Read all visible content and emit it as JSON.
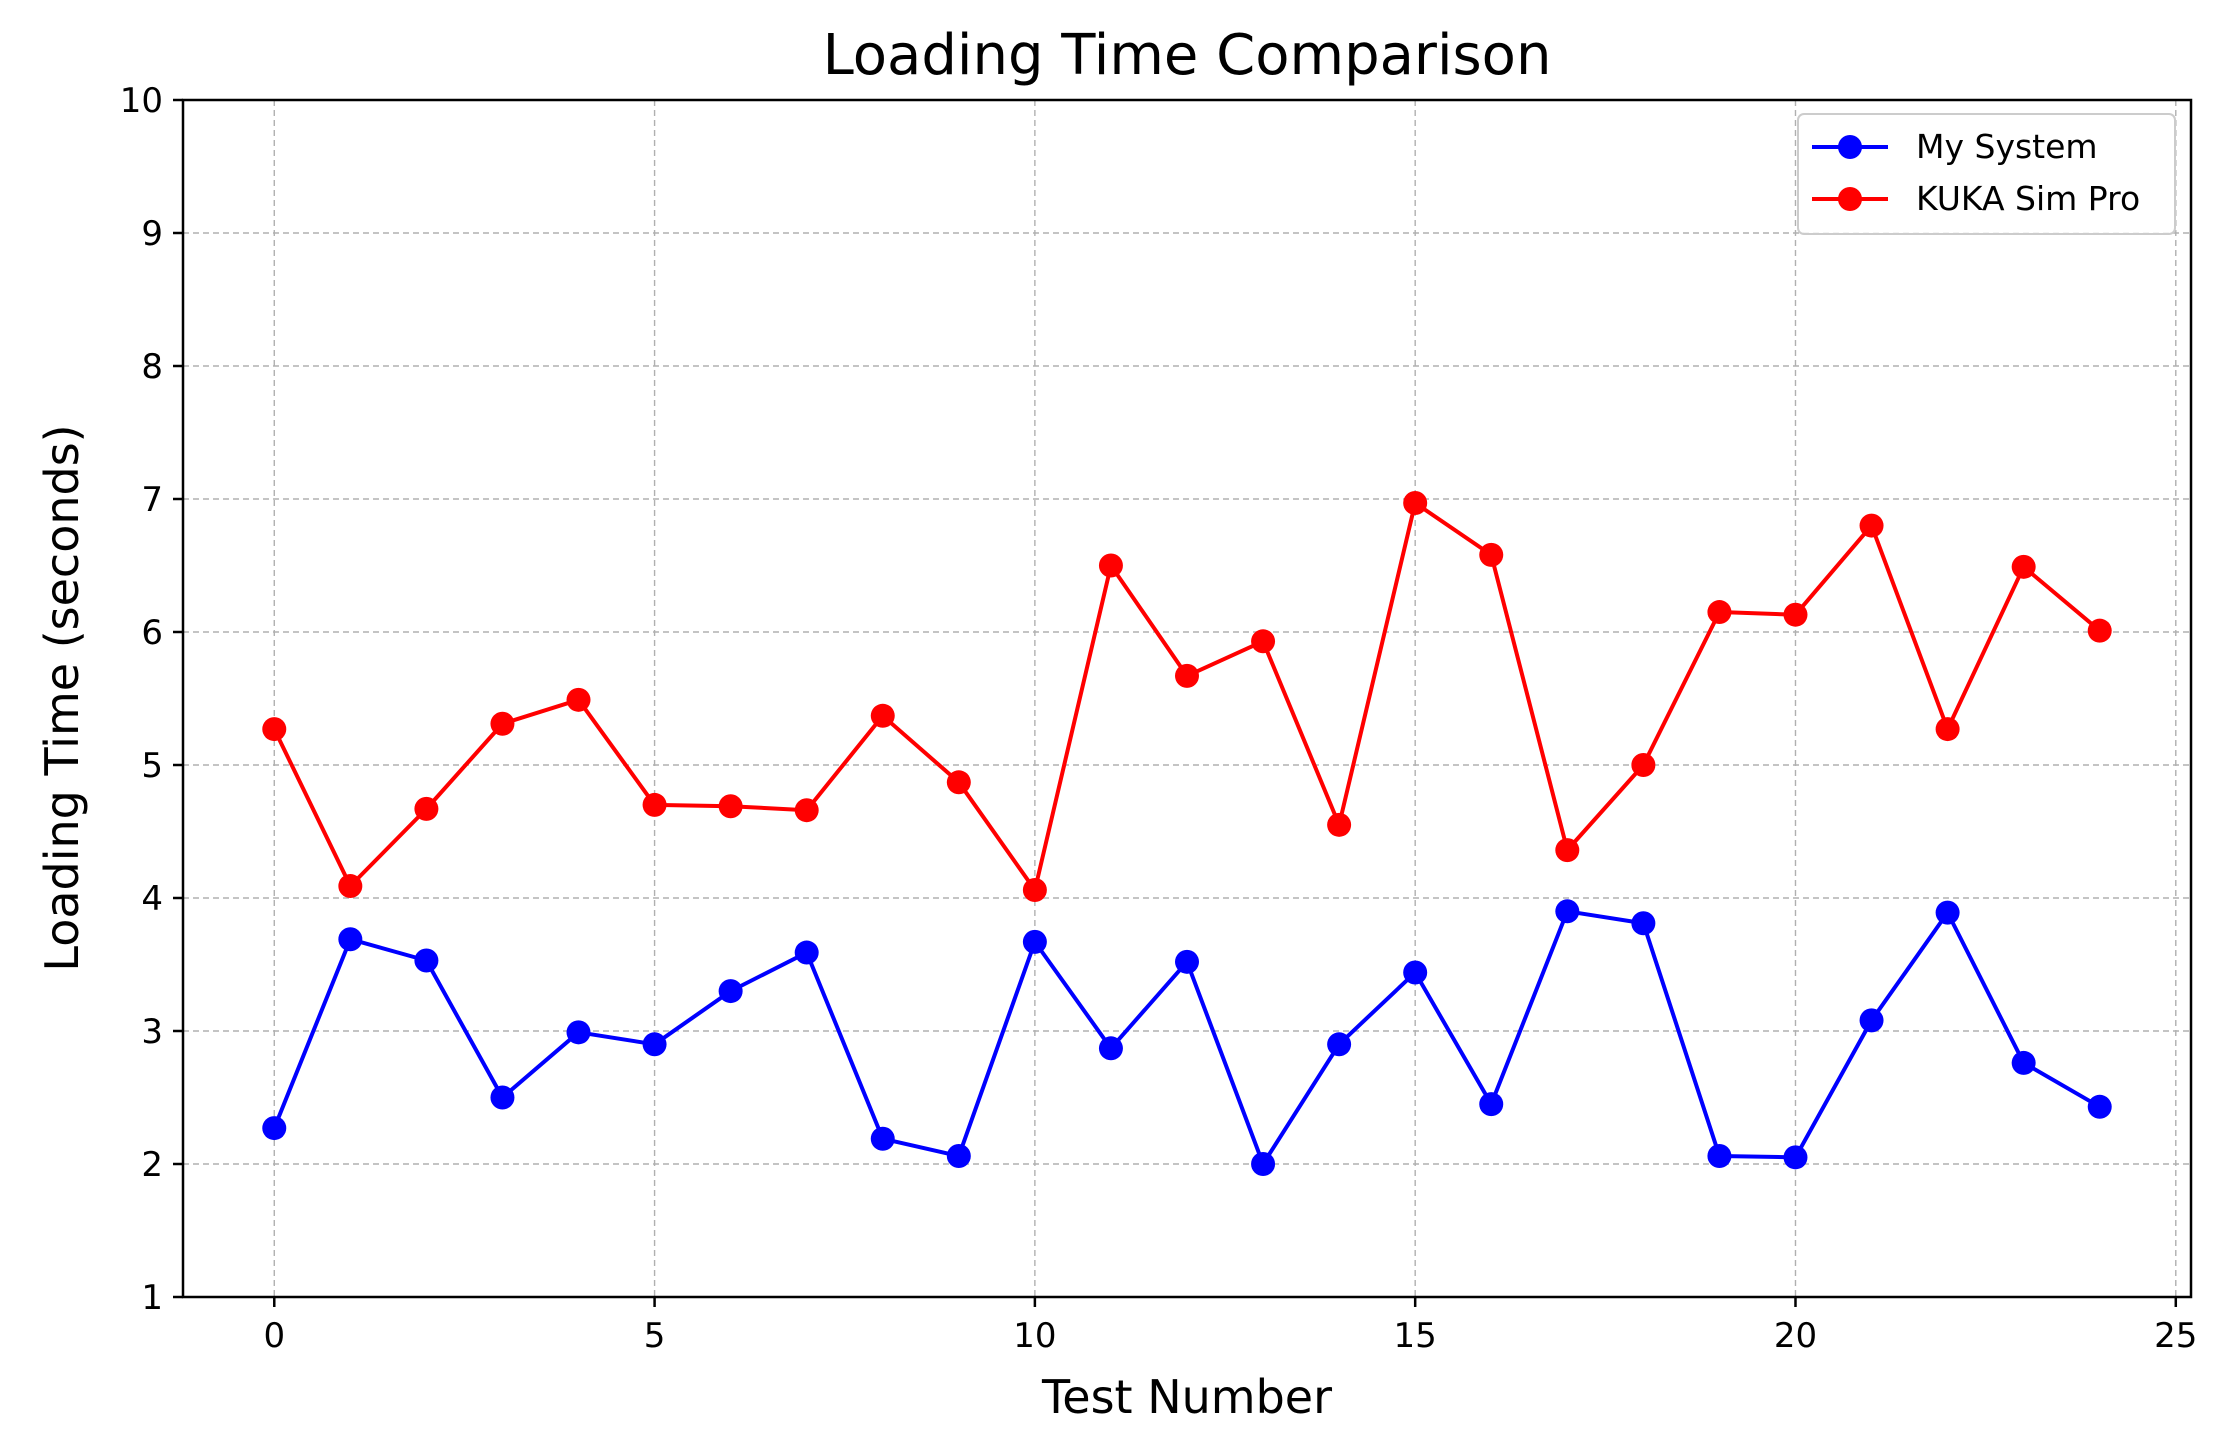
{
  "chart_data": {
    "type": "line",
    "title": "Loading Time Comparison",
    "xlabel": "Test Number",
    "ylabel": "Loading Time (seconds)",
    "xlim": [
      -1.2,
      25.2
    ],
    "ylim": [
      1,
      10
    ],
    "xticks": [
      0,
      5,
      10,
      15,
      20,
      25
    ],
    "yticks": [
      1,
      2,
      3,
      4,
      5,
      6,
      7,
      8,
      9,
      10
    ],
    "grid": true,
    "legend_position": "top-right",
    "x": [
      0,
      1,
      2,
      3,
      4,
      5,
      6,
      7,
      8,
      9,
      10,
      11,
      12,
      13,
      14,
      15,
      16,
      17,
      18,
      19,
      20,
      21,
      22,
      23,
      24
    ],
    "series": [
      {
        "name": "My System",
        "color": "#0000ff",
        "marker": "circle",
        "values": [
          2.27,
          3.69,
          3.53,
          2.5,
          2.99,
          2.9,
          3.3,
          3.59,
          2.19,
          2.06,
          3.67,
          2.87,
          3.52,
          2.0,
          2.9,
          3.44,
          2.45,
          3.9,
          3.81,
          2.06,
          2.05,
          3.08,
          3.89,
          2.76,
          2.43
        ]
      },
      {
        "name": "KUKA Sim Pro",
        "color": "#ff0000",
        "marker": "circle",
        "values": [
          5.27,
          4.09,
          4.67,
          5.31,
          5.49,
          4.7,
          4.69,
          4.66,
          5.37,
          4.87,
          4.06,
          6.5,
          5.67,
          5.93,
          4.55,
          6.97,
          6.58,
          4.36,
          5.0,
          6.15,
          6.13,
          6.8,
          5.27,
          6.49,
          6.01
        ]
      }
    ]
  }
}
